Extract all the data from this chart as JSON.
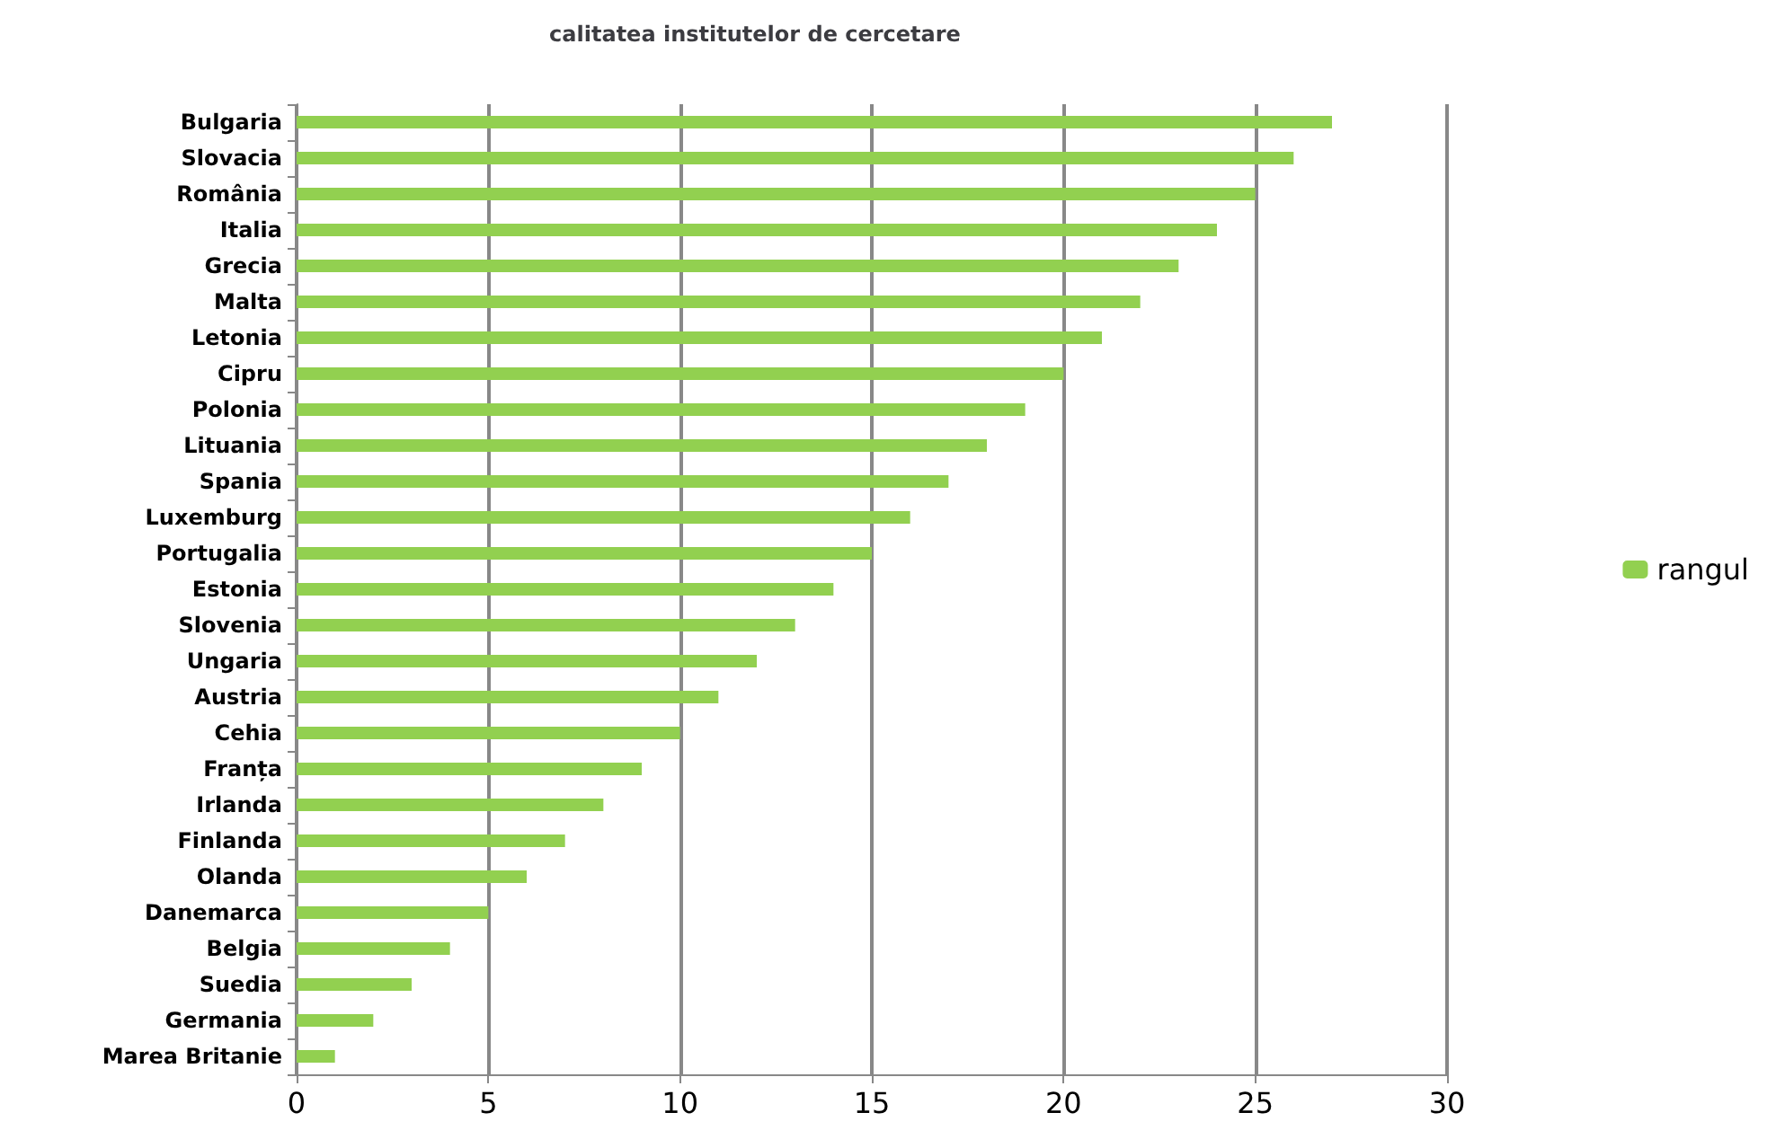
{
  "chart_data": {
    "type": "bar",
    "orientation": "horizontal",
    "title": "calitatea institutelor de cercetare",
    "categories": [
      "Bulgaria",
      "Slovacia",
      "România",
      "Italia",
      "Grecia",
      "Malta",
      "Letonia",
      "Cipru",
      "Polonia",
      "Lituania",
      "Spania",
      "Luxemburg",
      "Portugalia",
      "Estonia",
      "Slovenia",
      "Ungaria",
      "Austria",
      "Cehia",
      "Franța",
      "Irlanda",
      "Finlanda",
      "Olanda",
      "Danemarca",
      "Belgia",
      "Suedia",
      "Germania",
      "Marea Britanie"
    ],
    "series": [
      {
        "name": "rangul",
        "color": "#92d050",
        "values": [
          27,
          26,
          25,
          24,
          23,
          22,
          21,
          20,
          19,
          18,
          17,
          16,
          15,
          14,
          13,
          12,
          11,
          10,
          9,
          8,
          7,
          6,
          5,
          4,
          3,
          2,
          1
        ]
      }
    ],
    "xlim": [
      0,
      30
    ],
    "xticks": [
      0,
      5,
      10,
      15,
      20,
      25,
      30
    ],
    "grid": "x",
    "legend": "right"
  }
}
